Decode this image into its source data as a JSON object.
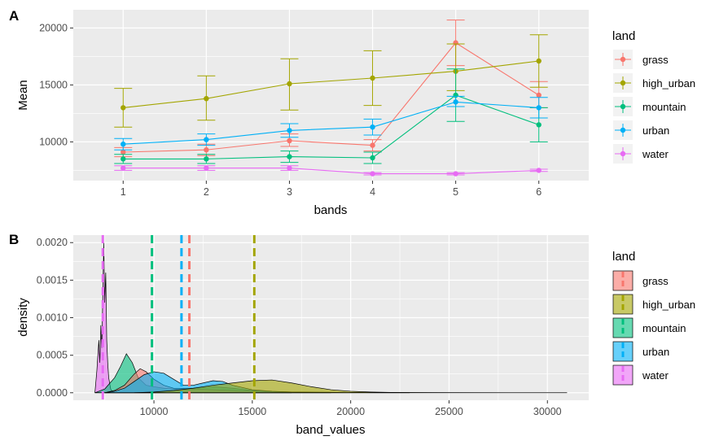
{
  "colors": {
    "grass": "#F8766D",
    "high_urban": "#A3A500",
    "mountain": "#00BF7D",
    "urban": "#00B0F6",
    "water": "#E76BF3",
    "panel_bg": "#EBEBEB",
    "grid": "#FFFFFF"
  },
  "chart_data": [
    {
      "panel_tag": "A",
      "type": "line",
      "xlabel": "bands",
      "ylabel": "Mean",
      "x": [
        1,
        2,
        3,
        4,
        5,
        6
      ],
      "x_ticks": [
        "1",
        "2",
        "3",
        "4",
        "5",
        "6"
      ],
      "y_ticks": [
        "10000",
        "15000",
        "20000"
      ],
      "y_tick_values": [
        10000,
        15000,
        20000
      ],
      "xlim": [
        0.4,
        6.6
      ],
      "ylim": [
        6600,
        21600
      ],
      "grid": true,
      "error_bars": true,
      "legend": {
        "title": "land",
        "position": "right",
        "entries": [
          "grass",
          "high_urban",
          "mountain",
          "urban",
          "water"
        ]
      },
      "series": [
        {
          "name": "grass",
          "values": [
            9100,
            9300,
            10100,
            9700,
            18700,
            14100
          ],
          "err_low": [
            8700,
            8800,
            9600,
            9200,
            16700,
            13000
          ],
          "err_high": [
            9500,
            9800,
            10700,
            10200,
            20700,
            15300
          ]
        },
        {
          "name": "high_urban",
          "values": [
            13000,
            13800,
            15100,
            15600,
            16200,
            17100
          ],
          "err_low": [
            11300,
            11900,
            12800,
            13200,
            14500,
            14800
          ],
          "err_high": [
            14700,
            15800,
            17300,
            18000,
            18600,
            19400
          ]
        },
        {
          "name": "mountain",
          "values": [
            8500,
            8500,
            8700,
            8600,
            14100,
            11500
          ],
          "err_low": [
            8100,
            8100,
            8200,
            8100,
            11800,
            10000
          ],
          "err_high": [
            8900,
            8900,
            9200,
            9100,
            16400,
            13000
          ]
        },
        {
          "name": "urban",
          "values": [
            9800,
            10200,
            11000,
            11300,
            13500,
            13000
          ],
          "err_low": [
            9300,
            9700,
            10400,
            10600,
            13100,
            12100
          ],
          "err_high": [
            10300,
            10700,
            11600,
            12000,
            14000,
            13900
          ]
        },
        {
          "name": "water",
          "values": [
            7700,
            7700,
            7700,
            7200,
            7200,
            7500
          ],
          "err_low": [
            7500,
            7500,
            7500,
            7100,
            7100,
            7400
          ],
          "err_high": [
            7900,
            7900,
            7900,
            7300,
            7300,
            7600
          ]
        }
      ]
    },
    {
      "panel_tag": "B",
      "type": "area",
      "xlabel": "band_values",
      "ylabel": "density",
      "x_ticks": [
        "10000",
        "15000",
        "20000",
        "25000",
        "30000"
      ],
      "x_tick_values": [
        10000,
        15000,
        20000,
        25000,
        30000
      ],
      "y_ticks": [
        "0.0000",
        "0.0005",
        "0.0010",
        "0.0015",
        "0.0020"
      ],
      "y_tick_values": [
        0,
        0.0005,
        0.001,
        0.0015,
        0.002
      ],
      "xlim": [
        5900,
        32100
      ],
      "ylim": [
        -0.0001,
        0.0021
      ],
      "grid": true,
      "legend": {
        "title": "land",
        "position": "right",
        "entries": [
          "grass",
          "high_urban",
          "mountain",
          "urban",
          "water"
        ]
      },
      "mean_lines": {
        "grass": 11800,
        "high_urban": 15100,
        "mountain": 9900,
        "urban": 11400,
        "water": 7400
      },
      "series": [
        {
          "name": "water",
          "x": [
            7000,
            7100,
            7200,
            7250,
            7300,
            7350,
            7400,
            7450,
            7500,
            7550,
            7600,
            7650,
            7700,
            7800,
            7900,
            8000,
            8200,
            8500,
            9000
          ],
          "values": [
            0,
            0.0003,
            0.0007,
            0.0004,
            0.0009,
            0.0006,
            0.0013,
            0.002,
            0.0012,
            0.0016,
            0.0007,
            0.0004,
            0.0002,
            5e-05,
            1e-05,
            0,
            0,
            0,
            0
          ]
        },
        {
          "name": "mountain",
          "x": [
            7000,
            7500,
            8000,
            8300,
            8600,
            8900,
            9200,
            9600,
            10000,
            10500,
            11000,
            12000,
            13000,
            14000,
            15000,
            16000,
            17000
          ],
          "values": [
            0,
            5e-05,
            0.0002,
            0.00035,
            0.00052,
            0.0004,
            0.0002,
            0.0001,
            8e-05,
            6e-05,
            5e-05,
            6e-05,
            8e-05,
            6e-05,
            3e-05,
            1e-05,
            0
          ]
        },
        {
          "name": "grass",
          "x": [
            7500,
            8000,
            8500,
            9000,
            9300,
            9600,
            10000,
            10500,
            11000,
            12000,
            13000,
            14000,
            15000,
            16000,
            17000,
            18000,
            20000,
            22000,
            23000
          ],
          "values": [
            0,
            3e-05,
            0.0001,
            0.00025,
            0.00032,
            0.00028,
            0.00018,
            0.0001,
            6e-05,
            5e-05,
            4e-05,
            3e-05,
            2e-05,
            1.5e-05,
            1e-05,
            8e-06,
            5e-06,
            2e-06,
            0
          ]
        },
        {
          "name": "urban",
          "x": [
            7500,
            8000,
            8500,
            9000,
            9500,
            10000,
            10500,
            11000,
            11500,
            12000,
            12500,
            13000,
            13500,
            14000,
            15000,
            16000,
            17000,
            18000,
            19000
          ],
          "values": [
            0,
            2e-05,
            6e-05,
            0.00015,
            0.00024,
            0.00028,
            0.00026,
            0.00018,
            0.0001,
            0.0001,
            0.00013,
            0.00016,
            0.00015,
            0.0001,
            4e-05,
            2e-05,
            1e-05,
            5e-06,
            0
          ]
        },
        {
          "name": "high_urban",
          "x": [
            9000,
            10000,
            11000,
            12000,
            13000,
            14000,
            15000,
            16000,
            17000,
            18000,
            19000,
            20000,
            21000,
            22000,
            25000,
            28000,
            31000
          ],
          "values": [
            0,
            1e-05,
            3e-05,
            6e-05,
            0.0001,
            0.00013,
            0.00016,
            0.00017,
            0.00013,
            8e-05,
            4e-05,
            2e-05,
            1e-05,
            5e-06,
            2e-06,
            1e-06,
            0
          ]
        }
      ]
    }
  ]
}
